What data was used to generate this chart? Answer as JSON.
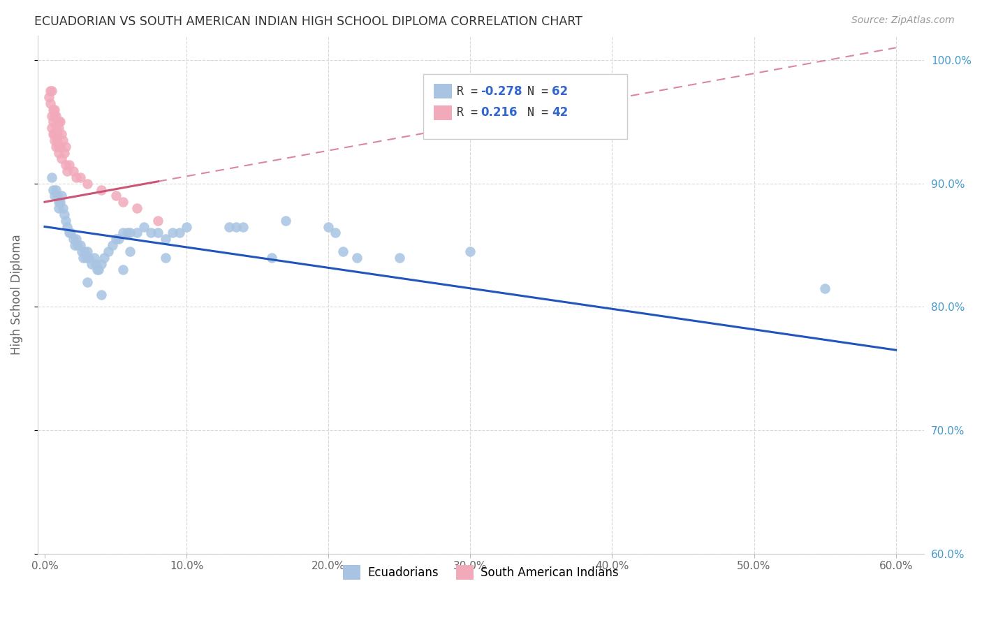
{
  "title": "ECUADORIAN VS SOUTH AMERICAN INDIAN HIGH SCHOOL DIPLOMA CORRELATION CHART",
  "source": "Source: ZipAtlas.com",
  "ylabel": "High School Diploma",
  "yticks": [
    60.0,
    70.0,
    80.0,
    90.0,
    100.0
  ],
  "legend_label_blue": "Ecuadorians",
  "legend_label_pink": "South American Indians",
  "blue_color": "#a8c4e2",
  "pink_color": "#f2aabb",
  "blue_line_color": "#2255bb",
  "pink_line_color": "#cc5577",
  "blue_scatter": [
    [
      0.5,
      90.5
    ],
    [
      0.6,
      89.5
    ],
    [
      0.7,
      89.0
    ],
    [
      0.8,
      89.5
    ],
    [
      0.9,
      89.0
    ],
    [
      1.0,
      88.5
    ],
    [
      1.0,
      88.0
    ],
    [
      1.1,
      88.5
    ],
    [
      1.2,
      89.0
    ],
    [
      1.3,
      88.0
    ],
    [
      1.4,
      87.5
    ],
    [
      1.5,
      87.0
    ],
    [
      1.6,
      86.5
    ],
    [
      1.7,
      86.0
    ],
    [
      1.8,
      86.0
    ],
    [
      2.0,
      85.5
    ],
    [
      2.1,
      85.0
    ],
    [
      2.2,
      85.5
    ],
    [
      2.3,
      85.0
    ],
    [
      2.5,
      85.0
    ],
    [
      2.6,
      84.5
    ],
    [
      2.7,
      84.0
    ],
    [
      2.8,
      84.5
    ],
    [
      2.9,
      84.0
    ],
    [
      3.0,
      84.5
    ],
    [
      3.1,
      84.0
    ],
    [
      3.3,
      83.5
    ],
    [
      3.5,
      84.0
    ],
    [
      3.6,
      83.5
    ],
    [
      3.7,
      83.0
    ],
    [
      3.8,
      83.0
    ],
    [
      4.0,
      83.5
    ],
    [
      4.2,
      84.0
    ],
    [
      4.5,
      84.5
    ],
    [
      4.8,
      85.0
    ],
    [
      5.0,
      85.5
    ],
    [
      5.2,
      85.5
    ],
    [
      5.5,
      86.0
    ],
    [
      5.8,
      86.0
    ],
    [
      6.0,
      86.0
    ],
    [
      6.5,
      86.0
    ],
    [
      7.0,
      86.5
    ],
    [
      7.5,
      86.0
    ],
    [
      8.0,
      86.0
    ],
    [
      8.5,
      85.5
    ],
    [
      9.0,
      86.0
    ],
    [
      9.5,
      86.0
    ],
    [
      10.0,
      86.5
    ],
    [
      13.0,
      86.5
    ],
    [
      13.5,
      86.5
    ],
    [
      14.0,
      86.5
    ],
    [
      17.0,
      87.0
    ],
    [
      20.0,
      86.5
    ],
    [
      20.5,
      86.0
    ],
    [
      3.0,
      82.0
    ],
    [
      4.0,
      81.0
    ],
    [
      5.5,
      83.0
    ],
    [
      6.0,
      84.5
    ],
    [
      8.5,
      84.0
    ],
    [
      16.0,
      84.0
    ],
    [
      21.0,
      84.5
    ],
    [
      55.0,
      81.5
    ],
    [
      22.0,
      84.0
    ],
    [
      25.0,
      84.0
    ],
    [
      30.0,
      84.5
    ]
  ],
  "pink_scatter": [
    [
      0.3,
      97.0
    ],
    [
      0.4,
      97.5
    ],
    [
      0.5,
      97.5
    ],
    [
      0.4,
      96.5
    ],
    [
      0.6,
      96.0
    ],
    [
      0.7,
      96.0
    ],
    [
      0.5,
      95.5
    ],
    [
      0.6,
      95.0
    ],
    [
      0.7,
      95.5
    ],
    [
      0.8,
      95.5
    ],
    [
      0.9,
      95.0
    ],
    [
      1.0,
      95.0
    ],
    [
      1.1,
      95.0
    ],
    [
      0.5,
      94.5
    ],
    [
      0.6,
      94.0
    ],
    [
      0.7,
      94.0
    ],
    [
      0.8,
      94.5
    ],
    [
      0.9,
      94.0
    ],
    [
      1.0,
      94.5
    ],
    [
      1.2,
      94.0
    ],
    [
      0.7,
      93.5
    ],
    [
      0.8,
      93.0
    ],
    [
      0.9,
      93.5
    ],
    [
      1.0,
      93.0
    ],
    [
      1.1,
      93.0
    ],
    [
      1.3,
      93.5
    ],
    [
      1.5,
      93.0
    ],
    [
      1.0,
      92.5
    ],
    [
      1.2,
      92.0
    ],
    [
      1.4,
      92.5
    ],
    [
      1.5,
      91.5
    ],
    [
      1.6,
      91.0
    ],
    [
      1.7,
      91.5
    ],
    [
      2.0,
      91.0
    ],
    [
      2.2,
      90.5
    ],
    [
      2.5,
      90.5
    ],
    [
      3.0,
      90.0
    ],
    [
      4.0,
      89.5
    ],
    [
      5.0,
      89.0
    ],
    [
      5.5,
      88.5
    ],
    [
      6.5,
      88.0
    ],
    [
      8.0,
      87.0
    ]
  ],
  "xlim": [
    -0.5,
    62.0
  ],
  "ylim": [
    60.0,
    102.0
  ],
  "xpct_ticks": [
    0.0,
    10.0,
    20.0,
    30.0,
    40.0,
    50.0,
    60.0
  ],
  "grid_color": "#d8d8d8",
  "blue_trendline_x": [
    0.0,
    60.0
  ],
  "blue_trendline_y": [
    86.5,
    76.5
  ],
  "pink_trendline_x": [
    0.0,
    60.0
  ],
  "pink_trendline_y": [
    88.5,
    101.0
  ],
  "pink_solid_end_x": 8.0
}
